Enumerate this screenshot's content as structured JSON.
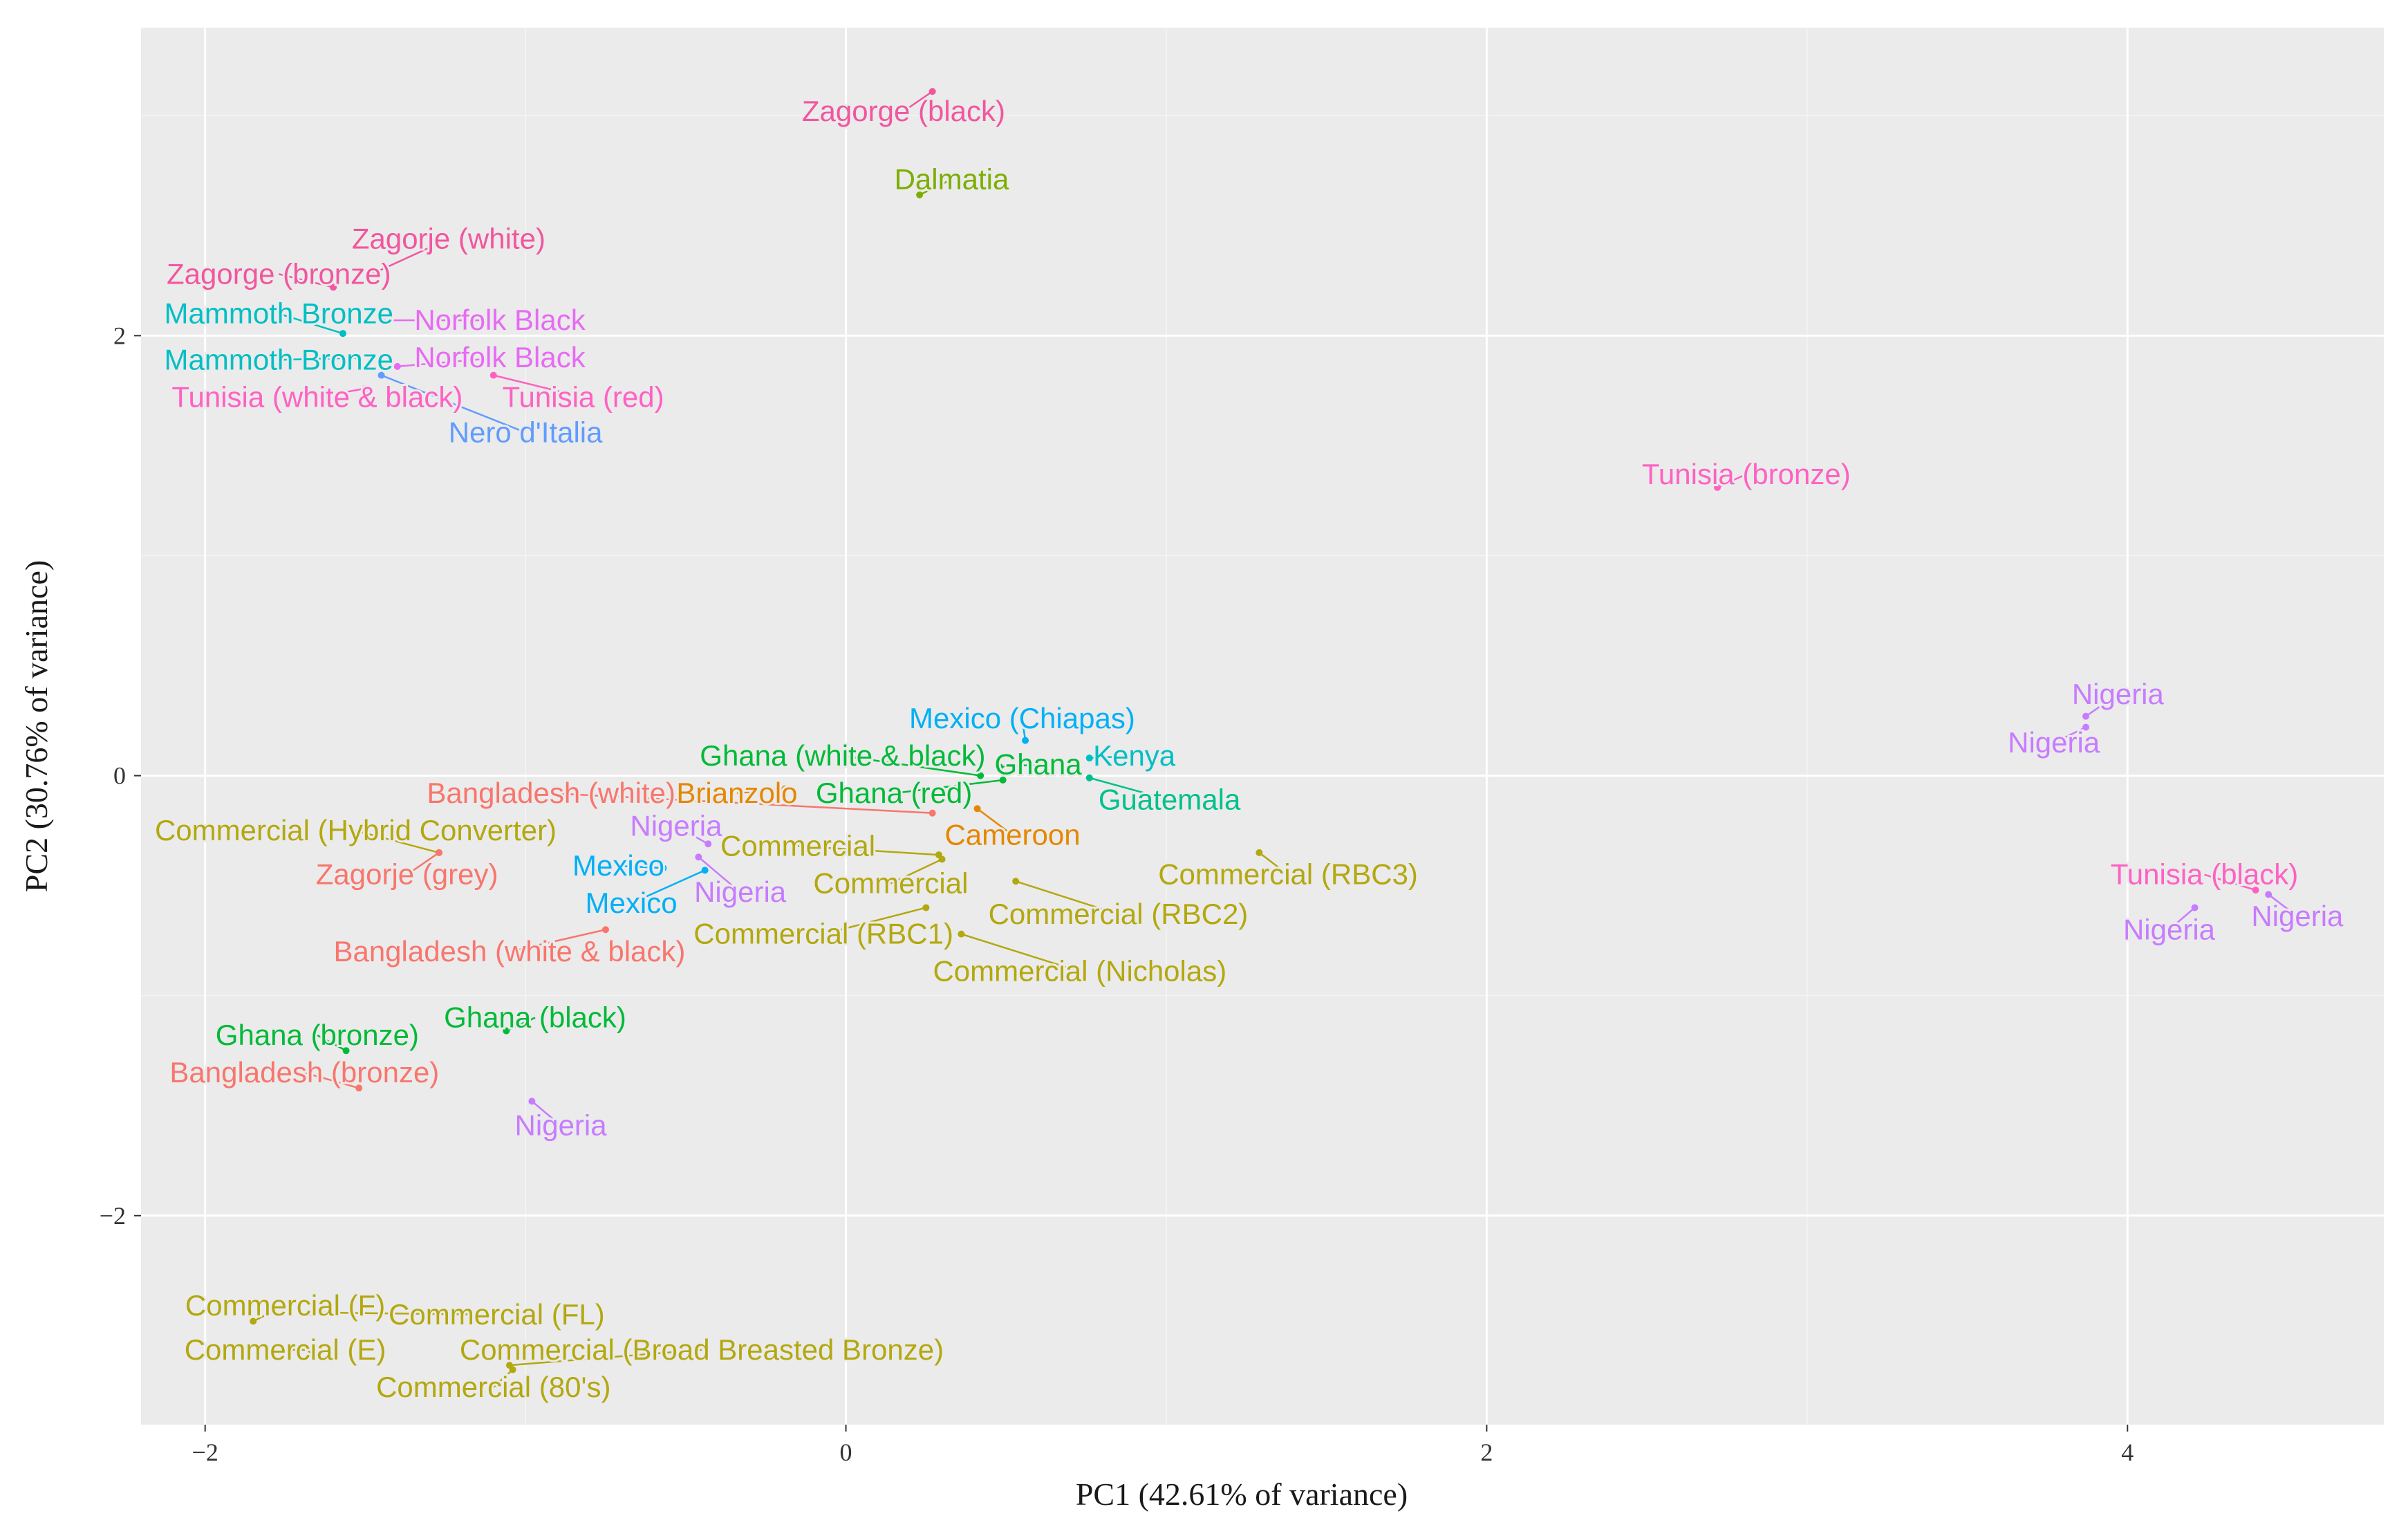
{
  "chart_data": {
    "type": "scatter",
    "title": "",
    "xlabel": "PC1 (42.61% of variance)",
    "ylabel": "PC2 (30.76% of variance)",
    "xlim": [
      -2.2,
      4.8
    ],
    "ylim": [
      -2.95,
      3.4
    ],
    "xticks": [
      -2,
      0,
      2,
      4
    ],
    "yticks": [
      -2,
      0,
      2
    ],
    "xtick_labels": [
      "−2",
      "0",
      "2",
      "4"
    ],
    "ytick_labels": [
      "−2",
      "0",
      "2"
    ],
    "grid": true,
    "legend": "none",
    "points": [
      {
        "label": "Zagorge (black)",
        "x": 0.27,
        "y": 3.11,
        "lx": 0.18,
        "ly": 3.02,
        "color": "#F2569E"
      },
      {
        "label": "Dalmatia",
        "x": 0.23,
        "y": 2.64,
        "lx": 0.33,
        "ly": 2.71,
        "color": "#7CAE00"
      },
      {
        "label": "Zagorje (white)",
        "x": -1.48,
        "y": 2.28,
        "lx": -1.24,
        "ly": 2.44,
        "color": "#F2569E"
      },
      {
        "label": "Zagorge (bronze)",
        "x": -1.6,
        "y": 2.22,
        "lx": -1.77,
        "ly": 2.28,
        "color": "#F2569E"
      },
      {
        "label": "Mammoth Bronze",
        "x": -1.57,
        "y": 2.01,
        "lx": -1.77,
        "ly": 2.1,
        "color": "#00BFC4"
      },
      {
        "label": "Norfolk Black",
        "x": -1.45,
        "y": 2.07,
        "lx": -1.08,
        "ly": 2.07,
        "color": "#E76BF3"
      },
      {
        "label": "Mammoth Bronze",
        "x": -1.52,
        "y": 1.9,
        "lx": -1.77,
        "ly": 1.89,
        "color": "#00BFC4"
      },
      {
        "label": "Norfolk Black",
        "x": -1.4,
        "y": 1.86,
        "lx": -1.08,
        "ly": 1.9,
        "color": "#E76BF3"
      },
      {
        "label": "Tunisia (white & black)",
        "x": -1.5,
        "y": 1.76,
        "lx": -1.65,
        "ly": 1.72,
        "color": "#FF61C3"
      },
      {
        "label": "Tunisia (red)",
        "x": -1.1,
        "y": 1.82,
        "lx": -0.82,
        "ly": 1.72,
        "color": "#FF61C3"
      },
      {
        "label": "Nero d'Italia",
        "x": -1.45,
        "y": 1.82,
        "lx": -1.0,
        "ly": 1.56,
        "color": "#619CFF"
      },
      {
        "label": "Tunisia (bronze)",
        "x": 2.72,
        "y": 1.31,
        "lx": 2.81,
        "ly": 1.37,
        "color": "#FF61C3"
      },
      {
        "label": "Nigeria",
        "x": 3.87,
        "y": 0.27,
        "lx": 3.97,
        "ly": 0.37,
        "color": "#C77CFF"
      },
      {
        "label": "Nigeria",
        "x": 3.87,
        "y": 0.22,
        "lx": 3.77,
        "ly": 0.15,
        "color": "#C77CFF"
      },
      {
        "label": "Tunisia (black)",
        "x": 4.4,
        "y": -0.52,
        "lx": 4.24,
        "ly": -0.45,
        "color": "#FF61C3"
      },
      {
        "label": "Nigeria",
        "x": 4.21,
        "y": -0.6,
        "lx": 4.13,
        "ly": -0.7,
        "color": "#C77CFF"
      },
      {
        "label": "Nigeria",
        "x": 4.44,
        "y": -0.54,
        "lx": 4.53,
        "ly": -0.64,
        "color": "#C77CFF"
      },
      {
        "label": "Mexico (Chiapas)",
        "x": 0.56,
        "y": 0.16,
        "lx": 0.55,
        "ly": 0.26,
        "color": "#00B0F6"
      },
      {
        "label": "Kenya",
        "x": 0.76,
        "y": 0.08,
        "lx": 0.9,
        "ly": 0.09,
        "color": "#00BFC4"
      },
      {
        "label": "Ghana (white & black)",
        "x": 0.42,
        "y": 0.0,
        "lx": -0.01,
        "ly": 0.09,
        "color": "#00BA38"
      },
      {
        "label": "Ghana",
        "x": 0.48,
        "y": 0.04,
        "lx": 0.6,
        "ly": 0.05,
        "color": "#00BA38"
      },
      {
        "label": "Ghana (red)",
        "x": 0.49,
        "y": -0.02,
        "lx": 0.15,
        "ly": -0.08,
        "color": "#00BA38"
      },
      {
        "label": "Guatemala",
        "x": 0.76,
        "y": -0.01,
        "lx": 1.01,
        "ly": -0.11,
        "color": "#00C08B"
      },
      {
        "label": "Bangladesh (white)",
        "x": 0.27,
        "y": -0.17,
        "lx": -0.92,
        "ly": -0.08,
        "color": "#F8766D"
      },
      {
        "label": "Brianzolo",
        "x": -0.19,
        "y": -0.06,
        "lx": -0.34,
        "ly": -0.08,
        "color": "#E58700"
      },
      {
        "label": "Cameroon",
        "x": 0.41,
        "y": -0.15,
        "lx": 0.52,
        "ly": -0.27,
        "color": "#E58700"
      },
      {
        "label": "Commercial (Hybrid Converter)",
        "x": -1.27,
        "y": -0.35,
        "lx": -1.53,
        "ly": -0.25,
        "color": "#B3A80F"
      },
      {
        "label": "Zagorje (grey)",
        "x": -1.27,
        "y": -0.35,
        "lx": -1.37,
        "ly": -0.45,
        "color": "#F8766D"
      },
      {
        "label": "Nigeria",
        "x": -0.43,
        "y": -0.31,
        "lx": -0.53,
        "ly": -0.23,
        "color": "#C77CFF"
      },
      {
        "label": "Commercial",
        "x": 0.29,
        "y": -0.36,
        "lx": -0.15,
        "ly": -0.32,
        "color": "#B3A80F"
      },
      {
        "label": "Commercial",
        "x": 0.3,
        "y": -0.38,
        "lx": 0.14,
        "ly": -0.49,
        "color": "#B3A80F"
      },
      {
        "label": "Commercial (RBC3)",
        "x": 1.29,
        "y": -0.35,
        "lx": 1.38,
        "ly": -0.45,
        "color": "#B3A80F"
      },
      {
        "label": "Mexico",
        "x": -0.57,
        "y": -0.42,
        "lx": -0.71,
        "ly": -0.41,
        "color": "#00B0F6"
      },
      {
        "label": "Mexico",
        "x": -0.44,
        "y": -0.43,
        "lx": -0.67,
        "ly": -0.58,
        "color": "#00B0F6"
      },
      {
        "label": "Nigeria",
        "x": -0.46,
        "y": -0.37,
        "lx": -0.33,
        "ly": -0.53,
        "color": "#C77CFF"
      },
      {
        "label": "Commercial (RBC2)",
        "x": 0.53,
        "y": -0.48,
        "lx": 0.85,
        "ly": -0.63,
        "color": "#B3A80F"
      },
      {
        "label": "Commercial (RBC1)",
        "x": 0.25,
        "y": -0.6,
        "lx": -0.07,
        "ly": -0.72,
        "color": "#B3A80F"
      },
      {
        "label": "Commercial (Nicholas)",
        "x": 0.36,
        "y": -0.72,
        "lx": 0.73,
        "ly": -0.89,
        "color": "#B3A80F"
      },
      {
        "label": "Bangladesh (white & black)",
        "x": -0.75,
        "y": -0.7,
        "lx": -1.05,
        "ly": -0.8,
        "color": "#F8766D"
      },
      {
        "label": "Ghana (bronze)",
        "x": -1.56,
        "y": -1.25,
        "lx": -1.65,
        "ly": -1.18,
        "color": "#00BA38"
      },
      {
        "label": "Ghana (black)",
        "x": -1.06,
        "y": -1.16,
        "lx": -0.97,
        "ly": -1.1,
        "color": "#00BA38"
      },
      {
        "label": "Bangladesh (bronze)",
        "x": -1.52,
        "y": -1.42,
        "lx": -1.69,
        "ly": -1.35,
        "color": "#F8766D"
      },
      {
        "label": "Nigeria",
        "x": -0.98,
        "y": -1.48,
        "lx": -0.89,
        "ly": -1.59,
        "color": "#C77CFF"
      },
      {
        "label": "Commercial (F)",
        "x": -1.85,
        "y": -2.48,
        "lx": -1.75,
        "ly": -2.41,
        "color": "#B3A80F"
      },
      {
        "label": "Commercial (FL)",
        "x": -1.67,
        "y": -2.44,
        "lx": -1.09,
        "ly": -2.45,
        "color": "#B3A80F"
      },
      {
        "label": "Commercial (E)",
        "x": -1.67,
        "y": -2.61,
        "lx": -1.75,
        "ly": -2.61,
        "color": "#B3A80F"
      },
      {
        "label": "Commercial (Broad Breasted Bronze)",
        "x": -1.05,
        "y": -2.68,
        "lx": -0.45,
        "ly": -2.61,
        "color": "#B3A80F"
      },
      {
        "label": "Commercial (80's)",
        "x": -1.04,
        "y": -2.7,
        "lx": -1.1,
        "ly": -2.78,
        "color": "#B3A80F"
      }
    ]
  }
}
